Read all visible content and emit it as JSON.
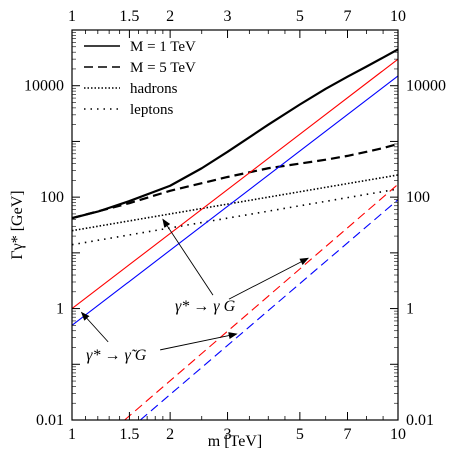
{
  "chart_data": {
    "type": "line",
    "x_scale": "log",
    "y_scale": "log",
    "xlim": [
      1,
      10
    ],
    "ylim": [
      0.01,
      100000
    ],
    "xlabel": "m [TeV]",
    "ylabel": "Γγ* [GeV]",
    "x_ticks": [
      1,
      1.5,
      2,
      3,
      5,
      7,
      10
    ],
    "x_tick_labels": [
      "1",
      "1.5",
      "2",
      "3",
      "5",
      "7",
      "10"
    ],
    "y_ticks": [
      0.01,
      1,
      100,
      10000
    ],
    "y_tick_labels": [
      "0.01",
      "1",
      "100",
      "10000"
    ],
    "legend": {
      "placement": "top-left",
      "entries": [
        {
          "label": "M = 1 TeV",
          "style": "solid"
        },
        {
          "label": "M = 5 TeV",
          "style": "dashed"
        },
        {
          "label": "hadrons",
          "style": "dotted"
        },
        {
          "label": "leptons",
          "style": "loose-dotted"
        }
      ]
    },
    "annotations": [
      {
        "text": "γ* → γ G"
      },
      {
        "text": "γ* → γ̃ G"
      }
    ],
    "series": [
      {
        "legend": "M = 1 TeV",
        "group": "total",
        "color": "#000000",
        "dash": "solid",
        "width": 2.2,
        "x": [
          1,
          1.2,
          1.5,
          2,
          2.5,
          3,
          4,
          5,
          6,
          7,
          8,
          9,
          10
        ],
        "y": [
          42,
          55,
          85,
          160,
          330,
          650,
          2000,
          4600,
          8800,
          14500,
          22000,
          32000,
          45000
        ]
      },
      {
        "legend": "M = 5 TeV",
        "group": "total",
        "color": "#000000",
        "dash": "dashed",
        "width": 2.2,
        "x": [
          1,
          1.5,
          2,
          3,
          4,
          5,
          6,
          7,
          8,
          9,
          10
        ],
        "y": [
          42,
          78,
          130,
          230,
          330,
          400,
          470,
          550,
          650,
          760,
          900
        ]
      },
      {
        "legend": "hadrons",
        "group": "SM",
        "color": "#000000",
        "dash": "dotted",
        "width": 1.6,
        "x": [
          1,
          10
        ],
        "y": [
          25,
          250
        ]
      },
      {
        "legend": "leptons",
        "group": "SM",
        "color": "#000000",
        "dash": "loose-dotted",
        "width": 1.6,
        "x": [
          1,
          10
        ],
        "y": [
          14,
          140
        ]
      },
      {
        "group": "γ* → γ G, M = 1 TeV",
        "color": "#ff0000",
        "dash": "solid",
        "width": 1.1,
        "x": [
          1,
          10
        ],
        "y": [
          1.0,
          30000
        ]
      },
      {
        "group": "γ* → γ̃ G, M = 1 TeV",
        "color": "#0000ff",
        "dash": "solid",
        "width": 1.1,
        "x": [
          1,
          10
        ],
        "y": [
          0.5,
          15000
        ]
      },
      {
        "group": "γ* → γ G, M = 5 TeV",
        "color": "#ff0000",
        "dash": "dashed",
        "width": 1.1,
        "x": [
          1.45,
          10
        ],
        "y": [
          0.01,
          170
        ]
      },
      {
        "group": "γ* → γ̃ G, M = 5 TeV",
        "color": "#0000ff",
        "dash": "dashed",
        "width": 1.1,
        "x": [
          1.62,
          10
        ],
        "y": [
          0.01,
          90
        ]
      }
    ]
  }
}
